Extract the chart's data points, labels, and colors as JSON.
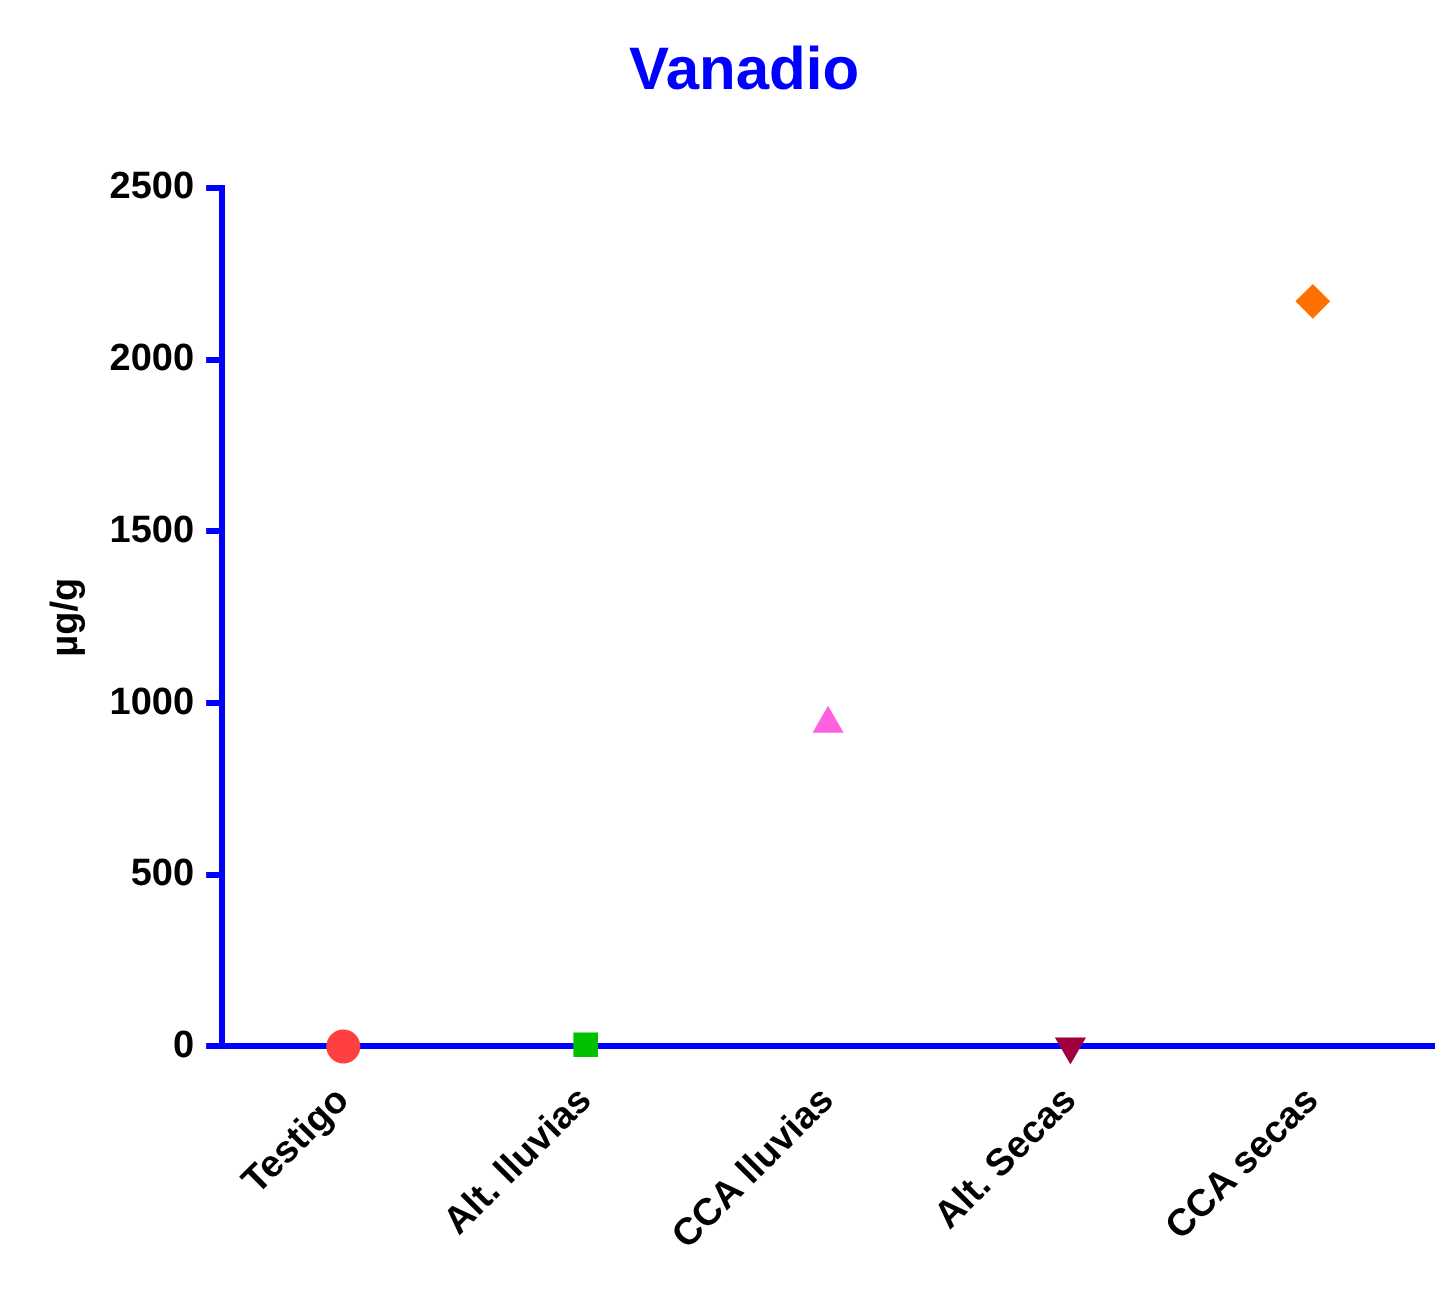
{
  "chart_data": {
    "type": "scatter",
    "title": "Vanadio",
    "ylabel": "µg/g",
    "categories": [
      "Testigo",
      "Alt. lluvias",
      "CCA lluvias",
      "Alt. Secas",
      "CCA secas"
    ],
    "series": [
      {
        "x": [
          "Testigo"
        ],
        "values": [
          0
        ],
        "color": "#ff4040",
        "marker": "circle"
      },
      {
        "x": [
          "Alt. lluvias"
        ],
        "values": [
          5
        ],
        "color": "#00c000",
        "marker": "square"
      },
      {
        "x": [
          "CCA lluvias"
        ],
        "values": [
          940
        ],
        "color": "#ff60e0",
        "marker": "triangle"
      },
      {
        "x": [
          "Alt. Secas"
        ],
        "values": [
          0
        ],
        "color": "#a00040",
        "marker": "triangle_down"
      },
      {
        "x": [
          "CCA secas"
        ],
        "values": [
          2170
        ],
        "color": "#ff7000",
        "marker": "diamond"
      }
    ],
    "ylim": [
      0,
      2500
    ],
    "yticks": [
      0,
      500,
      1000,
      1500,
      2000,
      2500
    ],
    "grid": false,
    "legend": false
  }
}
